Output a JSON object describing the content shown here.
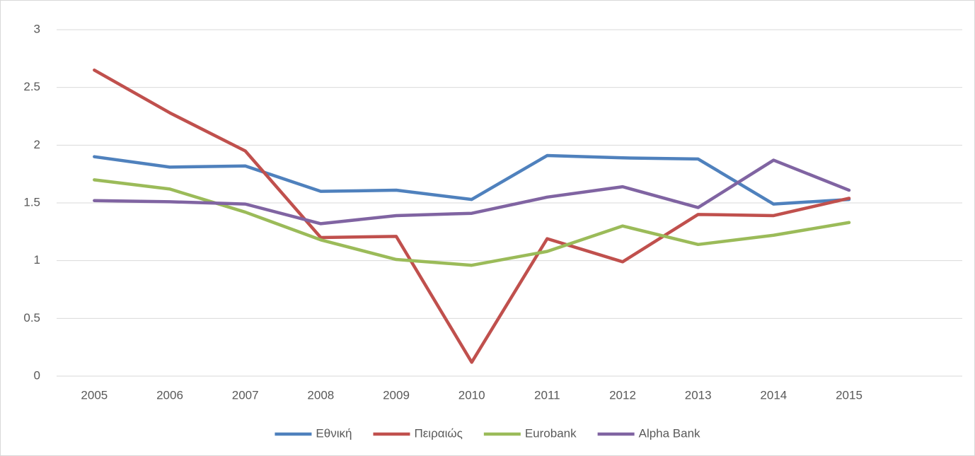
{
  "chart_data": {
    "type": "line",
    "categories": [
      "2005",
      "2006",
      "2007",
      "2008",
      "2009",
      "2010",
      "2011",
      "2012",
      "2013",
      "2014",
      "2015",
      null
    ],
    "series": [
      {
        "name": "Εθνική",
        "color": "#4f81bd",
        "values": [
          1.9,
          1.81,
          1.82,
          1.6,
          1.61,
          1.53,
          1.91,
          1.89,
          1.88,
          1.49,
          1.53,
          null
        ]
      },
      {
        "name": "Πειραιώς",
        "color": "#c0504d",
        "values": [
          2.65,
          2.28,
          1.95,
          1.2,
          1.21,
          0.12,
          1.19,
          0.99,
          1.4,
          1.39,
          1.54,
          null
        ]
      },
      {
        "name": "Eurobank",
        "color": "#9bbb59",
        "values": [
          1.7,
          1.62,
          1.42,
          1.18,
          1.01,
          0.96,
          1.08,
          1.3,
          1.14,
          1.22,
          1.33,
          null
        ]
      },
      {
        "name": "Alpha Bank",
        "color": "#8064a2",
        "values": [
          1.52,
          1.51,
          1.49,
          1.32,
          1.39,
          1.41,
          1.55,
          1.64,
          1.46,
          1.87,
          1.61,
          null
        ]
      }
    ],
    "ylim": [
      0,
      3
    ],
    "yticks": [
      0,
      0.5,
      1,
      1.5,
      2,
      2.5,
      3
    ],
    "grid": true,
    "legend": "bottom"
  }
}
